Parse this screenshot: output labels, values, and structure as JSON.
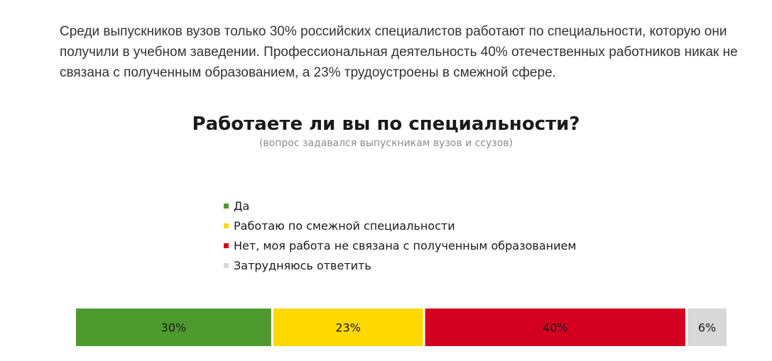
{
  "intro_text": "Среди выпускников вузов только 30% российских специалистов работают по специальности, которую они получили в учебном заведении. Профессиональная деятельность 40% отечественных работников никак не связана с полученным образованием, а 23% трудоустроены в смежной сфере.",
  "chart_data": {
    "type": "bar",
    "orientation": "horizontal-stacked",
    "title": "Работаете ли вы по специальности?",
    "subtitle": "(вопрос задавался выпускникам вузов и ссузов)",
    "xlabel": "",
    "ylabel": "",
    "legend_position": "above",
    "grid": false,
    "series": [
      {
        "name": "Да",
        "value": 30,
        "label": "30%",
        "color": "#4e9a2e"
      },
      {
        "name": "Работаю по смежной специальности",
        "value": 23,
        "label": "23%",
        "color": "#ffd800"
      },
      {
        "name": "Нет, моя работа не связана с полученным образованием",
        "value": 40,
        "label": "40%",
        "color": "#d4001f"
      },
      {
        "name": "Затрудняюсь ответить",
        "value": 6,
        "label": "6%",
        "color": "#d8d8d8"
      }
    ]
  }
}
